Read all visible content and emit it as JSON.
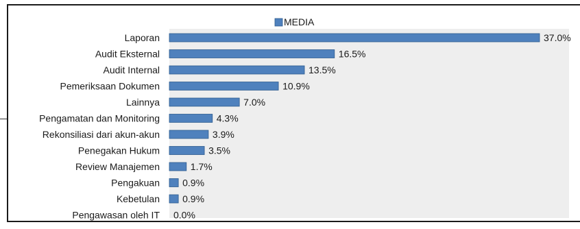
{
  "chart_data": {
    "type": "bar",
    "orientation": "horizontal",
    "categories": [
      "Laporan",
      "Audit Eksternal",
      "Audit Internal",
      "Pemeriksaan Dokumen",
      "Lainnya",
      "Pengamatan dan Monitoring",
      "Rekonsiliasi dari akun-akun",
      "Penegakan Hukum",
      "Review Manajemen",
      "Pengakuan",
      "Kebetulan",
      "Pengawasan oleh IT"
    ],
    "series": [
      {
        "name": "MEDIA",
        "values": [
          37.0,
          16.5,
          13.5,
          10.9,
          7.0,
          4.3,
          3.9,
          3.5,
          1.7,
          0.9,
          0.9,
          0.0
        ],
        "labels": [
          "37.0%",
          "16.5%",
          "13.5%",
          "10.9%",
          "7.0%",
          "4.3%",
          "3.9%",
          "3.5%",
          "1.7%",
          "0.9%",
          "0.9%",
          "0.0%"
        ]
      }
    ],
    "xlim": [
      0,
      37.0
    ],
    "legend_position": "top",
    "grid": false,
    "colors": {
      "bar": "#4f81bd",
      "bar_edge": "#2e5c8f",
      "plot_bg": "#eeeeee"
    }
  }
}
